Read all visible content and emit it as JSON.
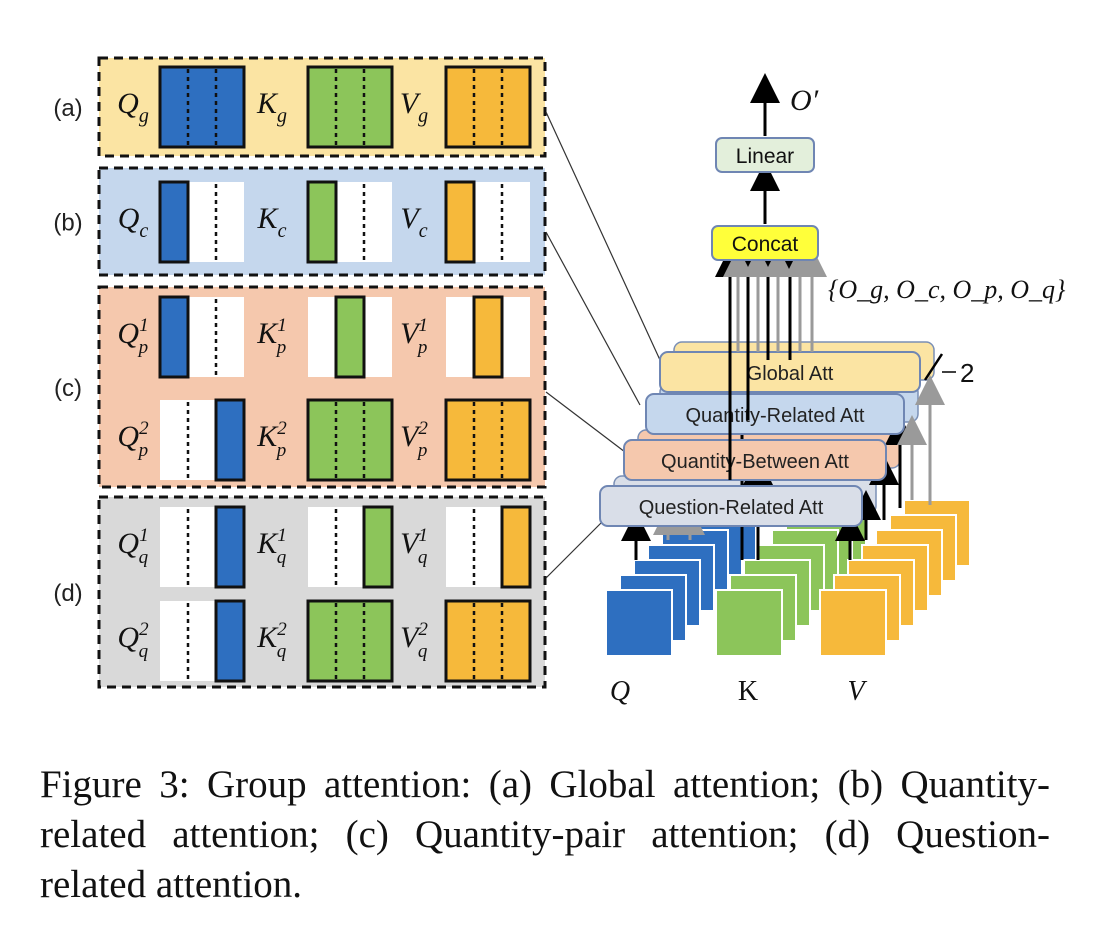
{
  "panels": [
    {
      "label": "(a)",
      "rows": [
        [
          {
            "m": "Q",
            "s": "g",
            "sup": ""
          },
          {
            "m": "K",
            "s": "g",
            "sup": ""
          },
          {
            "m": "V",
            "s": "g",
            "sup": ""
          }
        ]
      ]
    },
    {
      "label": "(b)",
      "rows": [
        [
          {
            "m": "Q",
            "s": "c",
            "sup": ""
          },
          {
            "m": "K",
            "s": "c",
            "sup": ""
          },
          {
            "m": "V",
            "s": "c",
            "sup": ""
          }
        ]
      ]
    },
    {
      "label": "(c)",
      "rows": [
        [
          {
            "m": "Q",
            "s": "p",
            "sup": "1"
          },
          {
            "m": "K",
            "s": "p",
            "sup": "1"
          },
          {
            "m": "V",
            "s": "p",
            "sup": "1"
          }
        ],
        [
          {
            "m": "Q",
            "s": "p",
            "sup": "2"
          },
          {
            "m": "K",
            "s": "p",
            "sup": "2"
          },
          {
            "m": "V",
            "s": "p",
            "sup": "2"
          }
        ]
      ]
    },
    {
      "label": "(d)",
      "rows": [
        [
          {
            "m": "Q",
            "s": "q",
            "sup": "1"
          },
          {
            "m": "K",
            "s": "q",
            "sup": "1"
          },
          {
            "m": "V",
            "s": "q",
            "sup": "1"
          }
        ],
        [
          {
            "m": "Q",
            "s": "q",
            "sup": "2"
          },
          {
            "m": "K",
            "s": "q",
            "sup": "2"
          },
          {
            "m": "V",
            "s": "q",
            "sup": "2"
          }
        ]
      ]
    }
  ],
  "right": {
    "output_label": "O′",
    "linear_label": "Linear",
    "concat_label": "Concat",
    "outputs_set": "{O_g, O_c, O_p, O_q}",
    "layers": [
      "Global Att",
      "Quantity-Related Att",
      "Quantity-Between Att",
      "Question-Related Att"
    ],
    "layer_count": "2",
    "inputs": [
      "Q",
      "K",
      "V"
    ]
  },
  "colors": {
    "panel_a": "#fbe4a3",
    "panel_b": "#c5d7ed",
    "panel_c": "#f5c8ad",
    "panel_d": "#d9d9d9",
    "q": "#2e6fc0",
    "k": "#8cc55a",
    "v": "#f6b93b",
    "concat": "#ffff3a",
    "linear": "#e3efdb"
  },
  "caption": "Figure 3:  Group attention:  (a) Global attention; (b) Quantity-related attention; (c) Quantity-pair attention; (d) Question-related attention."
}
